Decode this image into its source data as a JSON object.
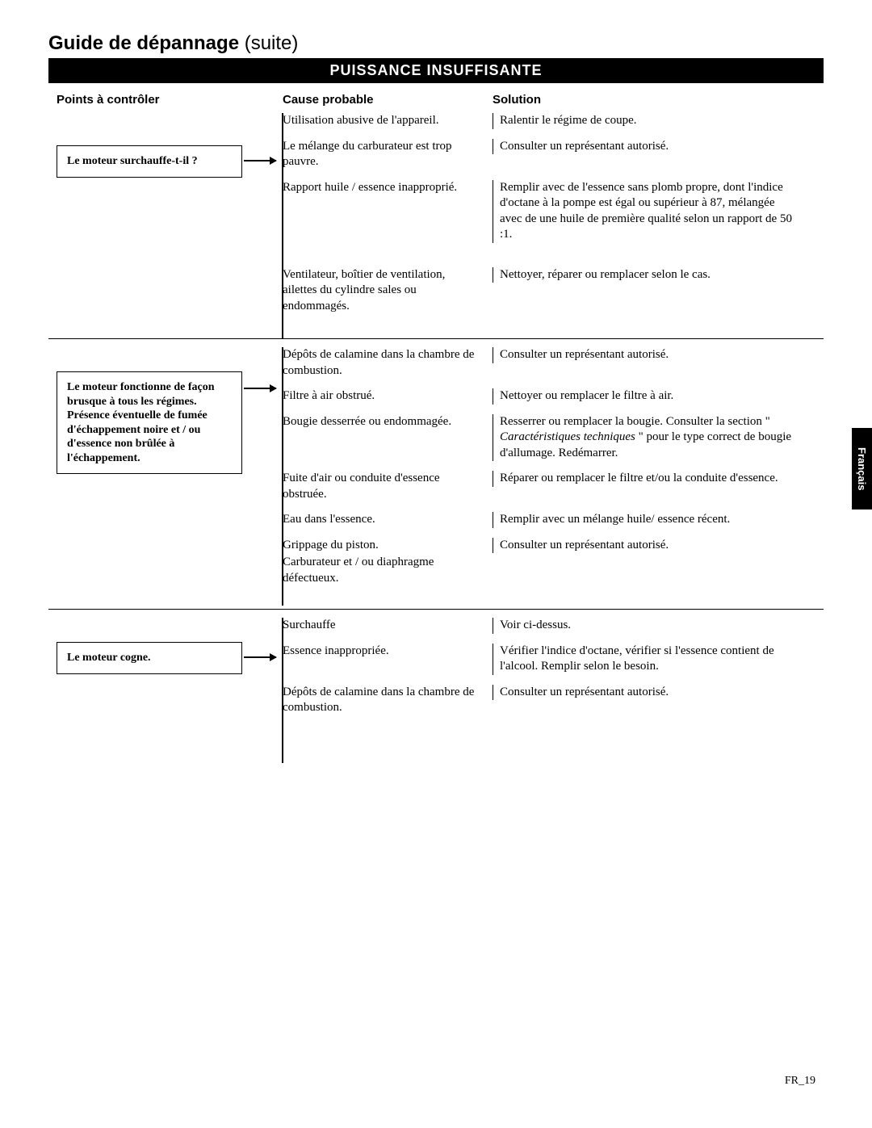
{
  "title_main": "Guide de dépannage ",
  "title_suffix": "(suite)",
  "banner": "PUISSANCE INSUFFISANTE",
  "headers": {
    "check": "Points à contrôler",
    "cause": "Cause probable",
    "solution": "Solution"
  },
  "side_tab": "Français",
  "page_number": "FR_19",
  "sections": [
    {
      "check": "Le moteur surchauffe-t-il ?",
      "rows": [
        {
          "cause": "Utilisation abusive de l'appareil.",
          "solution": "Ralentir le régime de coupe."
        },
        {
          "cause": "Le mélange du carburateur est trop pauvre.",
          "solution": "Consulter un représentant autorisé."
        },
        {
          "cause": "Rapport huile / essence inapproprié.",
          "solution": "Remplir avec de l'essence sans plomb propre, dont l'indice d'octane à la pompe est égal ou supérieur à 87, mélangée avec de une huile de première qualité selon un rapport de 50 :1."
        },
        {
          "cause": "Ventilateur, boîtier de ventilation, ailettes du cylindre sales ou endommagés.",
          "solution": "Nettoyer, réparer ou remplacer selon le cas."
        }
      ]
    },
    {
      "check": "Le moteur fonctionne de façon brusque à tous les régimes. Présence éventuelle de fumée d'échappement noire et / ou d'essence non brûlée à l'échappement.",
      "rows": [
        {
          "cause": "Dépôts de calamine dans la chambre de combustion.",
          "solution": "Consulter un représentant autorisé."
        },
        {
          "cause": "Filtre à air obstrué.",
          "solution": "Nettoyer ou remplacer le filtre à air."
        },
        {
          "cause": "Bougie desserrée ou endommagée.",
          "solution_html": "Resserrer ou remplacer la bougie. Consulter la section \" <span class=\"italic\">Caractéristiques techniques</span> \" pour le type correct de bougie d'allumage.  Redémarrer."
        },
        {
          "cause": "Fuite d'air ou conduite d'essence obstruée.",
          "solution": "Réparer ou remplacer le filtre et/ou la conduite d'essence."
        },
        {
          "cause": "Eau dans l'essence.",
          "solution": "Remplir avec un mélange huile/ essence récent."
        },
        {
          "cause": "Grippage du piston.",
          "solution": "Consulter un représentant autorisé."
        },
        {
          "cause": "Carburateur et / ou diaphragme défectueux.",
          "solution": ""
        }
      ]
    },
    {
      "check": "Le moteur cogne.",
      "rows": [
        {
          "cause": "Surchauffe",
          "solution": "Voir ci-dessus."
        },
        {
          "cause": "Essence inappropriée.",
          "solution": "Vérifier l'indice d'octane, vérifier si l'essence contient de l'alcool. Remplir selon le besoin."
        },
        {
          "cause": "Dépôts de calamine dans la chambre de combustion.",
          "solution": "Consulter un représentant autorisé."
        }
      ]
    }
  ]
}
